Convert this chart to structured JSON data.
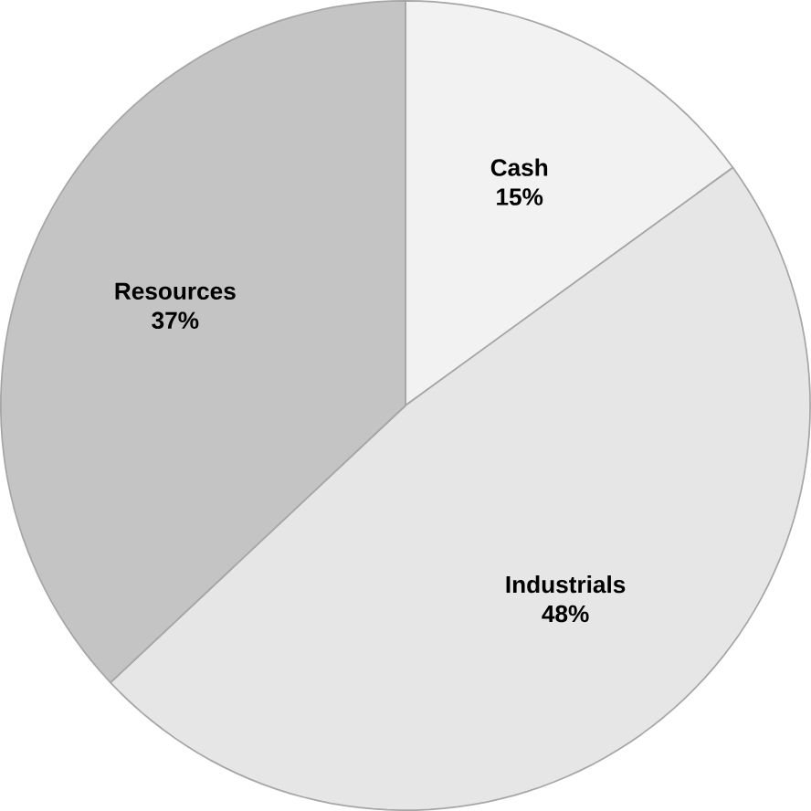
{
  "chart_data": {
    "type": "pie",
    "categories": [
      "Cash",
      "Industrials",
      "Resources"
    ],
    "values": [
      15,
      48,
      37
    ],
    "colors": [
      "#f2f2f2",
      "#e6e6e6",
      "#c4c4c4"
    ],
    "value_labels": [
      "15%",
      "48%",
      "37%"
    ]
  }
}
